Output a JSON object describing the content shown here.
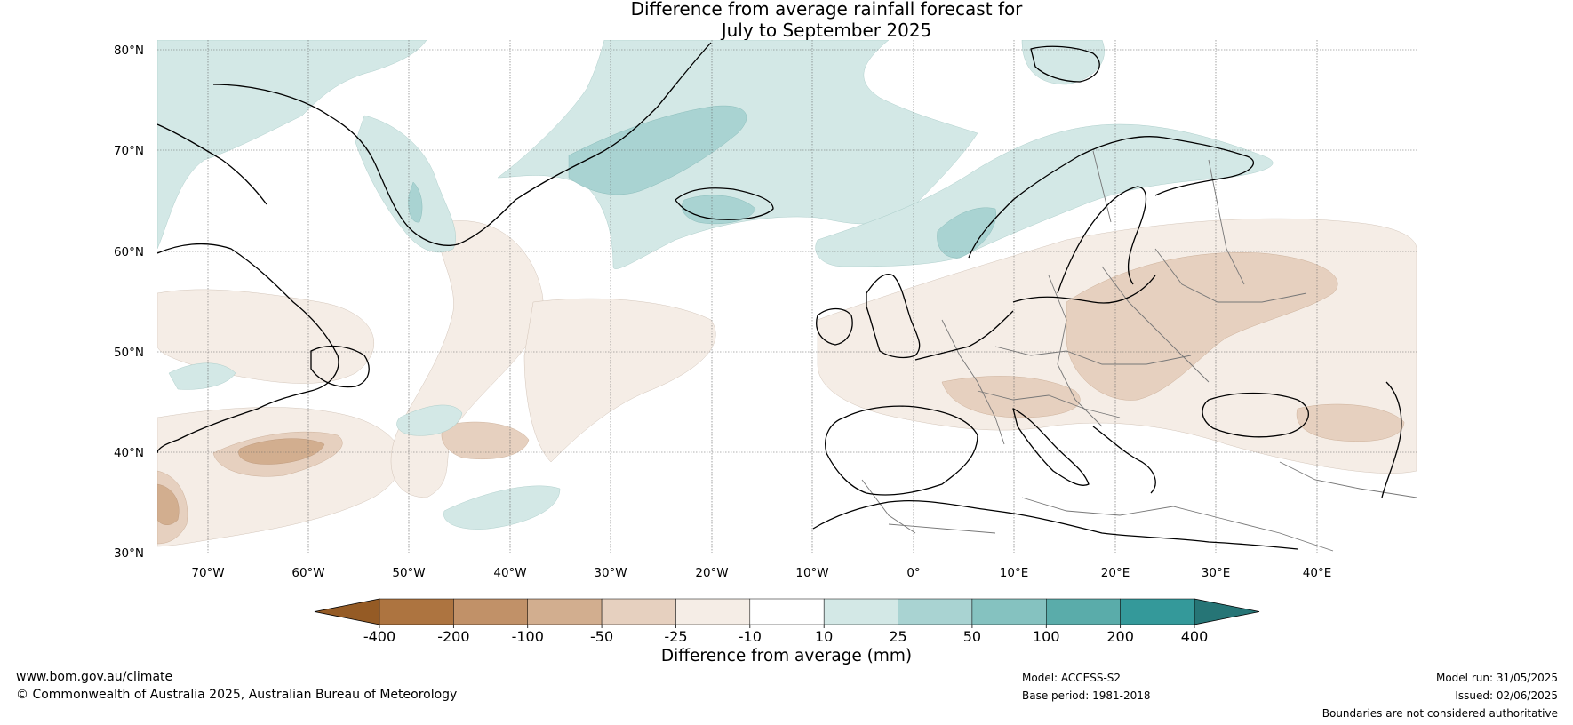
{
  "title": {
    "line1": "Difference from average rainfall forecast for",
    "line2": "July to September 2025"
  },
  "map": {
    "lat_ticks": [
      "80°N",
      "70°N",
      "60°N",
      "50°N",
      "40°N",
      "30°N"
    ],
    "lon_ticks": [
      "70°W",
      "60°W",
      "50°W",
      "40°W",
      "30°W",
      "20°W",
      "10°W",
      "0°",
      "10°E",
      "20°E",
      "30°E",
      "40°E"
    ],
    "colors": {
      "dry_1": "#f5ede6",
      "dry_2": "#e6d0bf",
      "dry_3": "#d2ae8f",
      "wet_1": "#d3e8e6",
      "wet_2": "#a9d3d2",
      "coast": "#000000",
      "border": "#777777"
    }
  },
  "colorbar": {
    "colors": [
      "#955b25",
      "#ad7440",
      "#c19168",
      "#d2ae8f",
      "#e6d0bf",
      "#f5ede6",
      "#ffffff",
      "#d3e8e6",
      "#a9d3d2",
      "#85c2c0",
      "#5aacaa",
      "#34999a",
      "#267576"
    ],
    "labels": [
      "-400",
      "-200",
      "-100",
      "-50",
      "-25",
      "-10",
      "10",
      "25",
      "50",
      "100",
      "200",
      "400"
    ],
    "title": "Difference from average (mm)"
  },
  "footer": {
    "website": "www.bom.gov.au/climate",
    "copyright": "© Commonwealth of Australia 2025, Australian Bureau of Meteorology",
    "model": "Model: ACCESS-S2",
    "base_period": "Base period: 1981-2018",
    "model_run": "Model run: 31/05/2025",
    "issued": "Issued: 02/06/2025",
    "disclaimer": "Boundaries are not considered authoritative"
  }
}
